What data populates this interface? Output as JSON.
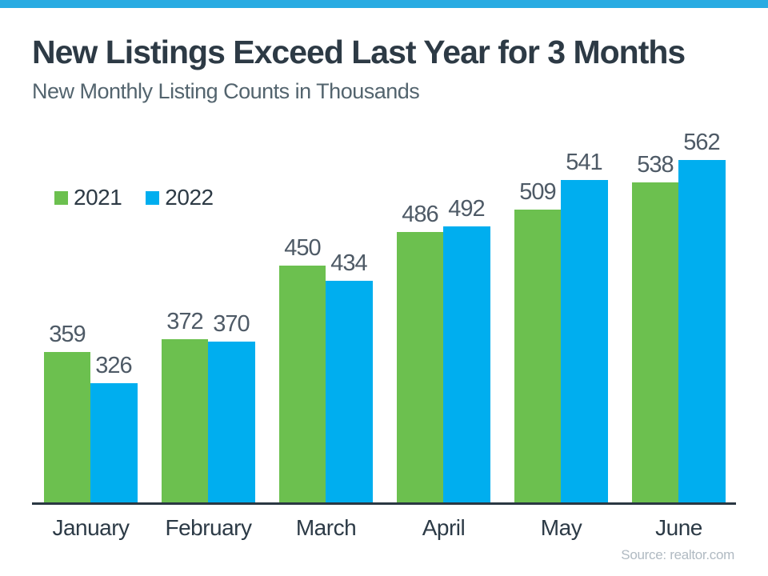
{
  "page": {
    "accent_bar_color": "#29abe2",
    "background_color": "#ffffff"
  },
  "header": {
    "title": "New Listings Exceed Last Year for 3 Months",
    "subtitle": "New Monthly Listing Counts in Thousands"
  },
  "source": "Source: realtor.com",
  "chart_data": {
    "type": "bar",
    "title": "New Listings Exceed Last Year for 3 Months",
    "subtitle": "New Monthly Listing Counts in Thousands",
    "categories": [
      "January",
      "February",
      "March",
      "April",
      "May",
      "June"
    ],
    "series": [
      {
        "name": "2021",
        "color": "#6cc04f",
        "values": [
          359,
          372,
          450,
          486,
          509,
          538
        ]
      },
      {
        "name": "2022",
        "color": "#00aeef",
        "values": [
          326,
          370,
          434,
          492,
          541,
          562
        ]
      }
    ],
    "xlabel": "",
    "ylabel": "",
    "ylim": [
      200,
      604
    ],
    "grid": false,
    "legend_position": "top-left",
    "value_labels": true,
    "axis_line_color": "#2a3742",
    "source": "Source: realtor.com"
  }
}
